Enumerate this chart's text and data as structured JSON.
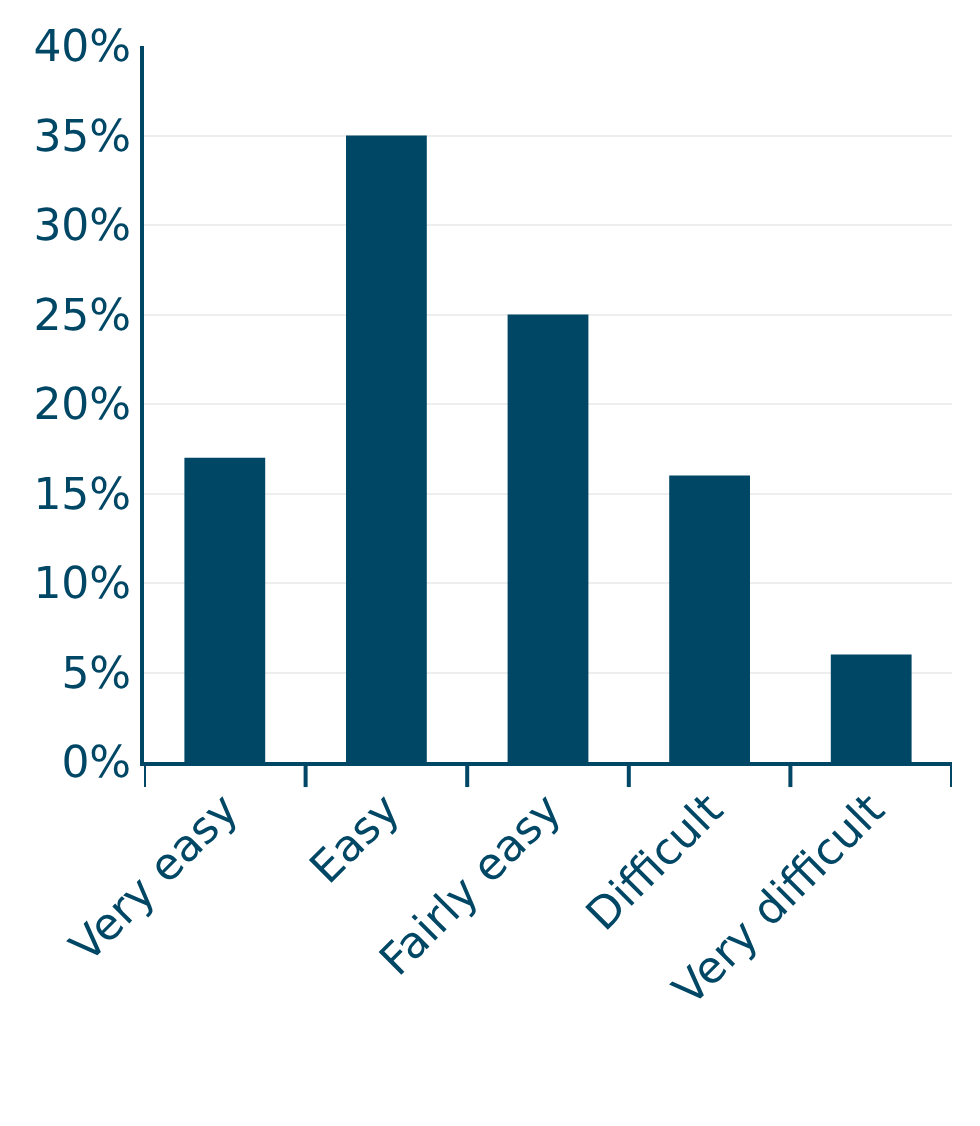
{
  "chart_data": {
    "type": "bar",
    "categories": [
      "Very easy",
      "Easy",
      "Fairly easy",
      "Difficult",
      "Very difficult"
    ],
    "values": [
      17,
      35,
      25,
      16,
      6
    ],
    "color": "#004766",
    "ylim": [
      0,
      40
    ],
    "yticks": [
      {
        "value": 0,
        "label": "0%"
      },
      {
        "value": 5,
        "label": "5%"
      },
      {
        "value": 10,
        "label": "10%"
      },
      {
        "value": 15,
        "label": "15%"
      },
      {
        "value": 20,
        "label": "20%"
      },
      {
        "value": 25,
        "label": "25%"
      },
      {
        "value": 30,
        "label": "30%"
      },
      {
        "value": 35,
        "label": "35%"
      },
      {
        "value": 40,
        "label": "40%"
      }
    ],
    "grid": "y",
    "legend": false
  }
}
